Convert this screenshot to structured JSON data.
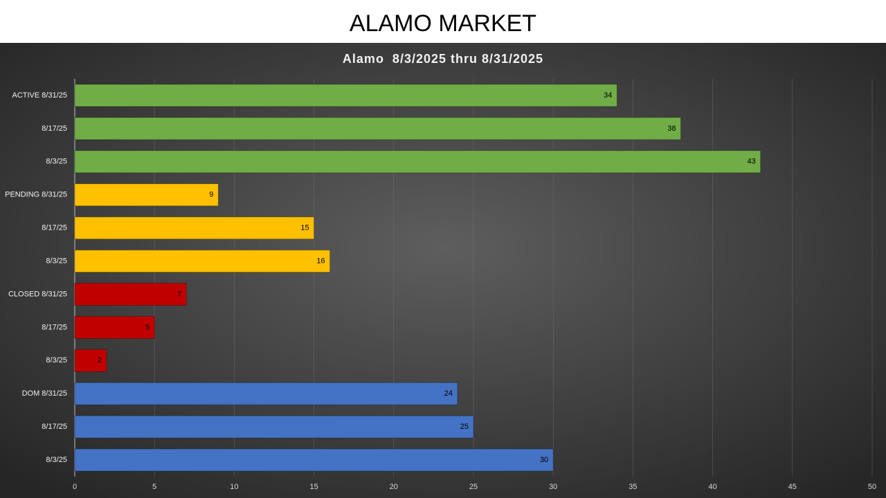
{
  "page_title": "ALAMO MARKET",
  "chart_data": {
    "type": "hbar",
    "title": "Alamo  8/3/2025 thru 8/31/2025",
    "categories": [
      "ACTIVE 8/31/25",
      "8/17/25",
      "8/3/25",
      "PENDING 8/31/25",
      "8/17/25",
      "8/3/25",
      "CLOSED 8/31/25",
      "8/17/25",
      "8/3/25",
      "DOM 8/31/25",
      "8/17/25",
      "8/3/25"
    ],
    "values": [
      34,
      38,
      43,
      9,
      15,
      16,
      7,
      5,
      2,
      24,
      25,
      30
    ],
    "colors": [
      "#70ad47",
      "#70ad47",
      "#70ad47",
      "#ffc000",
      "#ffc000",
      "#ffc000",
      "#c00000",
      "#c00000",
      "#c00000",
      "#4472c4",
      "#4472c4",
      "#4472c4"
    ],
    "xlim": [
      0,
      50
    ],
    "xticks": [
      0,
      5,
      10,
      15,
      20,
      25,
      30,
      35,
      40,
      45,
      50
    ],
    "grid": true
  }
}
